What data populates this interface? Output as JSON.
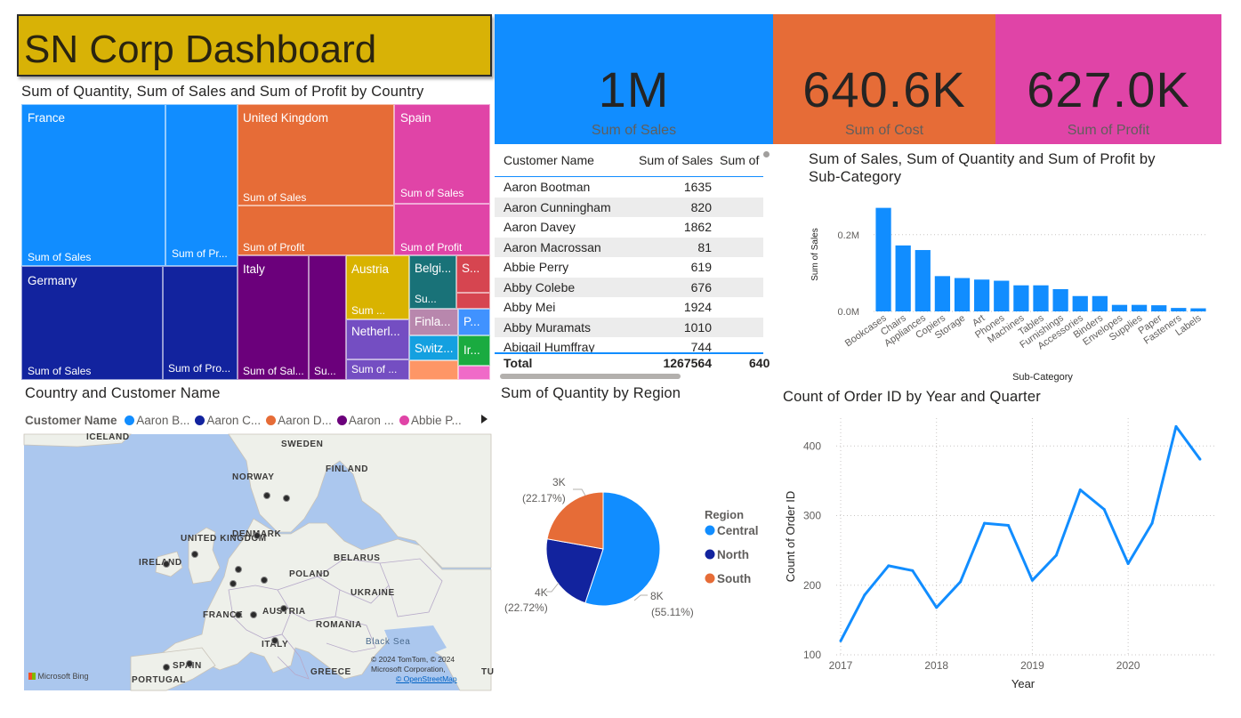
{
  "dashboard": {
    "title": "SN Corp Dashboard"
  },
  "kpis": [
    {
      "value": "1M",
      "label": "Sum of Sales",
      "color": "#118dff"
    },
    {
      "value": "640.6K",
      "label": "Sum of Cost",
      "color": "#e66c37"
    },
    {
      "value": "627.0K",
      "label": "Sum of Profit",
      "color": "#e044a7"
    }
  ],
  "treemap": {
    "title": "Sum of Quantity, Sum of Sales and Sum of Profit by Country",
    "cells": {
      "france": "France",
      "france_sales": "Sum of Sales",
      "france_profit": "Sum of Pr...",
      "uk": "United Kingdom",
      "uk_sales": "Sum of Sales",
      "uk_profit": "Sum of Profit",
      "spain": "Spain",
      "spain_sales": "Sum of Sales",
      "spain_profit": "Sum of Profit",
      "germany": "Germany",
      "germany_sales": "Sum of Sales",
      "germany_profit": "Sum of Pro...",
      "italy": "Italy",
      "italy_sales": "Sum of Sal...",
      "italy_su": "Su...",
      "austria": "Austria",
      "austria_sum": "Sum ...",
      "belgium": "Belgi...",
      "belgium_su": "Su...",
      "s": "S...",
      "netherlands": "Netherl...",
      "netherlands_sum": "Sum of ...",
      "finland": "Finla...",
      "p": "P...",
      "switzerland": "Switz...",
      "ir": "Ir..."
    }
  },
  "table": {
    "headers": [
      "Customer Name",
      "Sum of Sales",
      "Sum of"
    ],
    "rows": [
      [
        "Aaron Bootman",
        "1635"
      ],
      [
        "Aaron Cunningham",
        "820"
      ],
      [
        "Aaron Davey",
        "1862"
      ],
      [
        "Aaron Macrossan",
        "81"
      ],
      [
        "Abbie Perry",
        "619"
      ],
      [
        "Abby Colebe",
        "676"
      ],
      [
        "Abby Mei",
        "1924"
      ],
      [
        "Abby Muramats",
        "1010"
      ],
      [
        "Abigail Humffray",
        "744"
      ]
    ],
    "total_label": "Total",
    "total_sales": "1267564",
    "total_next": "640"
  },
  "map": {
    "title": "Country and Customer Name",
    "legend_title": "Customer Name",
    "legend_items": [
      {
        "label": "Aaron B...",
        "color": "#118dff"
      },
      {
        "label": "Aaron C...",
        "color": "#12239e"
      },
      {
        "label": "Aaron D...",
        "color": "#e66c37"
      },
      {
        "label": "Aaron ...",
        "color": "#6b007b"
      },
      {
        "label": "Abbie P...",
        "color": "#e044a7"
      }
    ],
    "place_labels": [
      "ICELAND",
      "SWEDEN",
      "FINLAND",
      "NORWAY",
      "UNITED KINGDOM",
      "DENMARK",
      "IRELAND",
      "BELARUS",
      "POLAND",
      "UKRAINE",
      "FRANCE",
      "AUSTRIA",
      "ROMANIA",
      "ITALY",
      "Black Sea",
      "SPAIN",
      "GREECE",
      "PORTUGAL",
      "TU"
    ],
    "copyright": "© 2024 TomTom, © 2024 Microsoft Corporation,",
    "osm": "© OpenStreetMap",
    "bing": "Microsoft Bing"
  },
  "pie": {
    "title": "Sum of Quantity by Region",
    "legend_title": "Region",
    "labels": {
      "central_value": "8K",
      "central_pct": "(55.11%)",
      "north_value": "4K",
      "north_pct": "(22.72%)",
      "south_value": "3K",
      "south_pct": "(22.17%)"
    }
  },
  "bar": {
    "title_line1": "Sum of Sales, Sum of Quantity and Sum of Profit by",
    "title_line2": "Sub-Category"
  },
  "line": {
    "title": "Count of Order ID by Year and Quarter"
  },
  "chart_data": [
    {
      "type": "pie",
      "title": "Sum of Quantity by Region",
      "categories": [
        "Central",
        "North",
        "South"
      ],
      "values": [
        55.11,
        22.72,
        22.17
      ],
      "value_labels": [
        "8K",
        "4K",
        "3K"
      ],
      "colors": [
        "#118dff",
        "#12239e",
        "#e66c37"
      ],
      "legend": "right"
    },
    {
      "type": "bar",
      "title": "Sum of Sales, Sum of Quantity and Sum of Profit by Sub-Category",
      "xlabel": "Sub-Category",
      "ylabel": "Sum of Sales",
      "categories": [
        "Bookcases",
        "Chairs",
        "Appliances",
        "Copiers",
        "Storage",
        "Art",
        "Phones",
        "Machines",
        "Tables",
        "Furnishings",
        "Accessories",
        "Binders",
        "Envelopes",
        "Supplies",
        "Paper",
        "Fasteners",
        "Labels"
      ],
      "values": [
        270000,
        172000,
        160000,
        92000,
        87000,
        83000,
        80000,
        68000,
        68000,
        58000,
        40000,
        40000,
        17000,
        17000,
        16000,
        9000,
        8000
      ],
      "yticks": [
        "0.0M",
        "0.2M"
      ],
      "ylim": [
        0,
        290000
      ],
      "color": "#118dff",
      "grid": true
    },
    {
      "type": "line",
      "title": "Count of Order ID by Year and Quarter",
      "xlabel": "Year",
      "ylabel": "Count of Order ID",
      "x": [
        "2017 Q1",
        "2017 Q2",
        "2017 Q3",
        "2017 Q4",
        "2018 Q1",
        "2018 Q2",
        "2018 Q3",
        "2018 Q4",
        "2019 Q1",
        "2019 Q2",
        "2019 Q3",
        "2019 Q4",
        "2020 Q1",
        "2020 Q2",
        "2020 Q3",
        "2020 Q4"
      ],
      "values": [
        120,
        186,
        228,
        221,
        168,
        205,
        289,
        286,
        207,
        243,
        337,
        309,
        231,
        289,
        428,
        381
      ],
      "xticks": [
        "2017",
        "2018",
        "2019",
        "2020"
      ],
      "yticks": [
        100,
        200,
        300,
        400
      ],
      "ylim": [
        100,
        440
      ],
      "color": "#118dff",
      "grid": true
    }
  ]
}
